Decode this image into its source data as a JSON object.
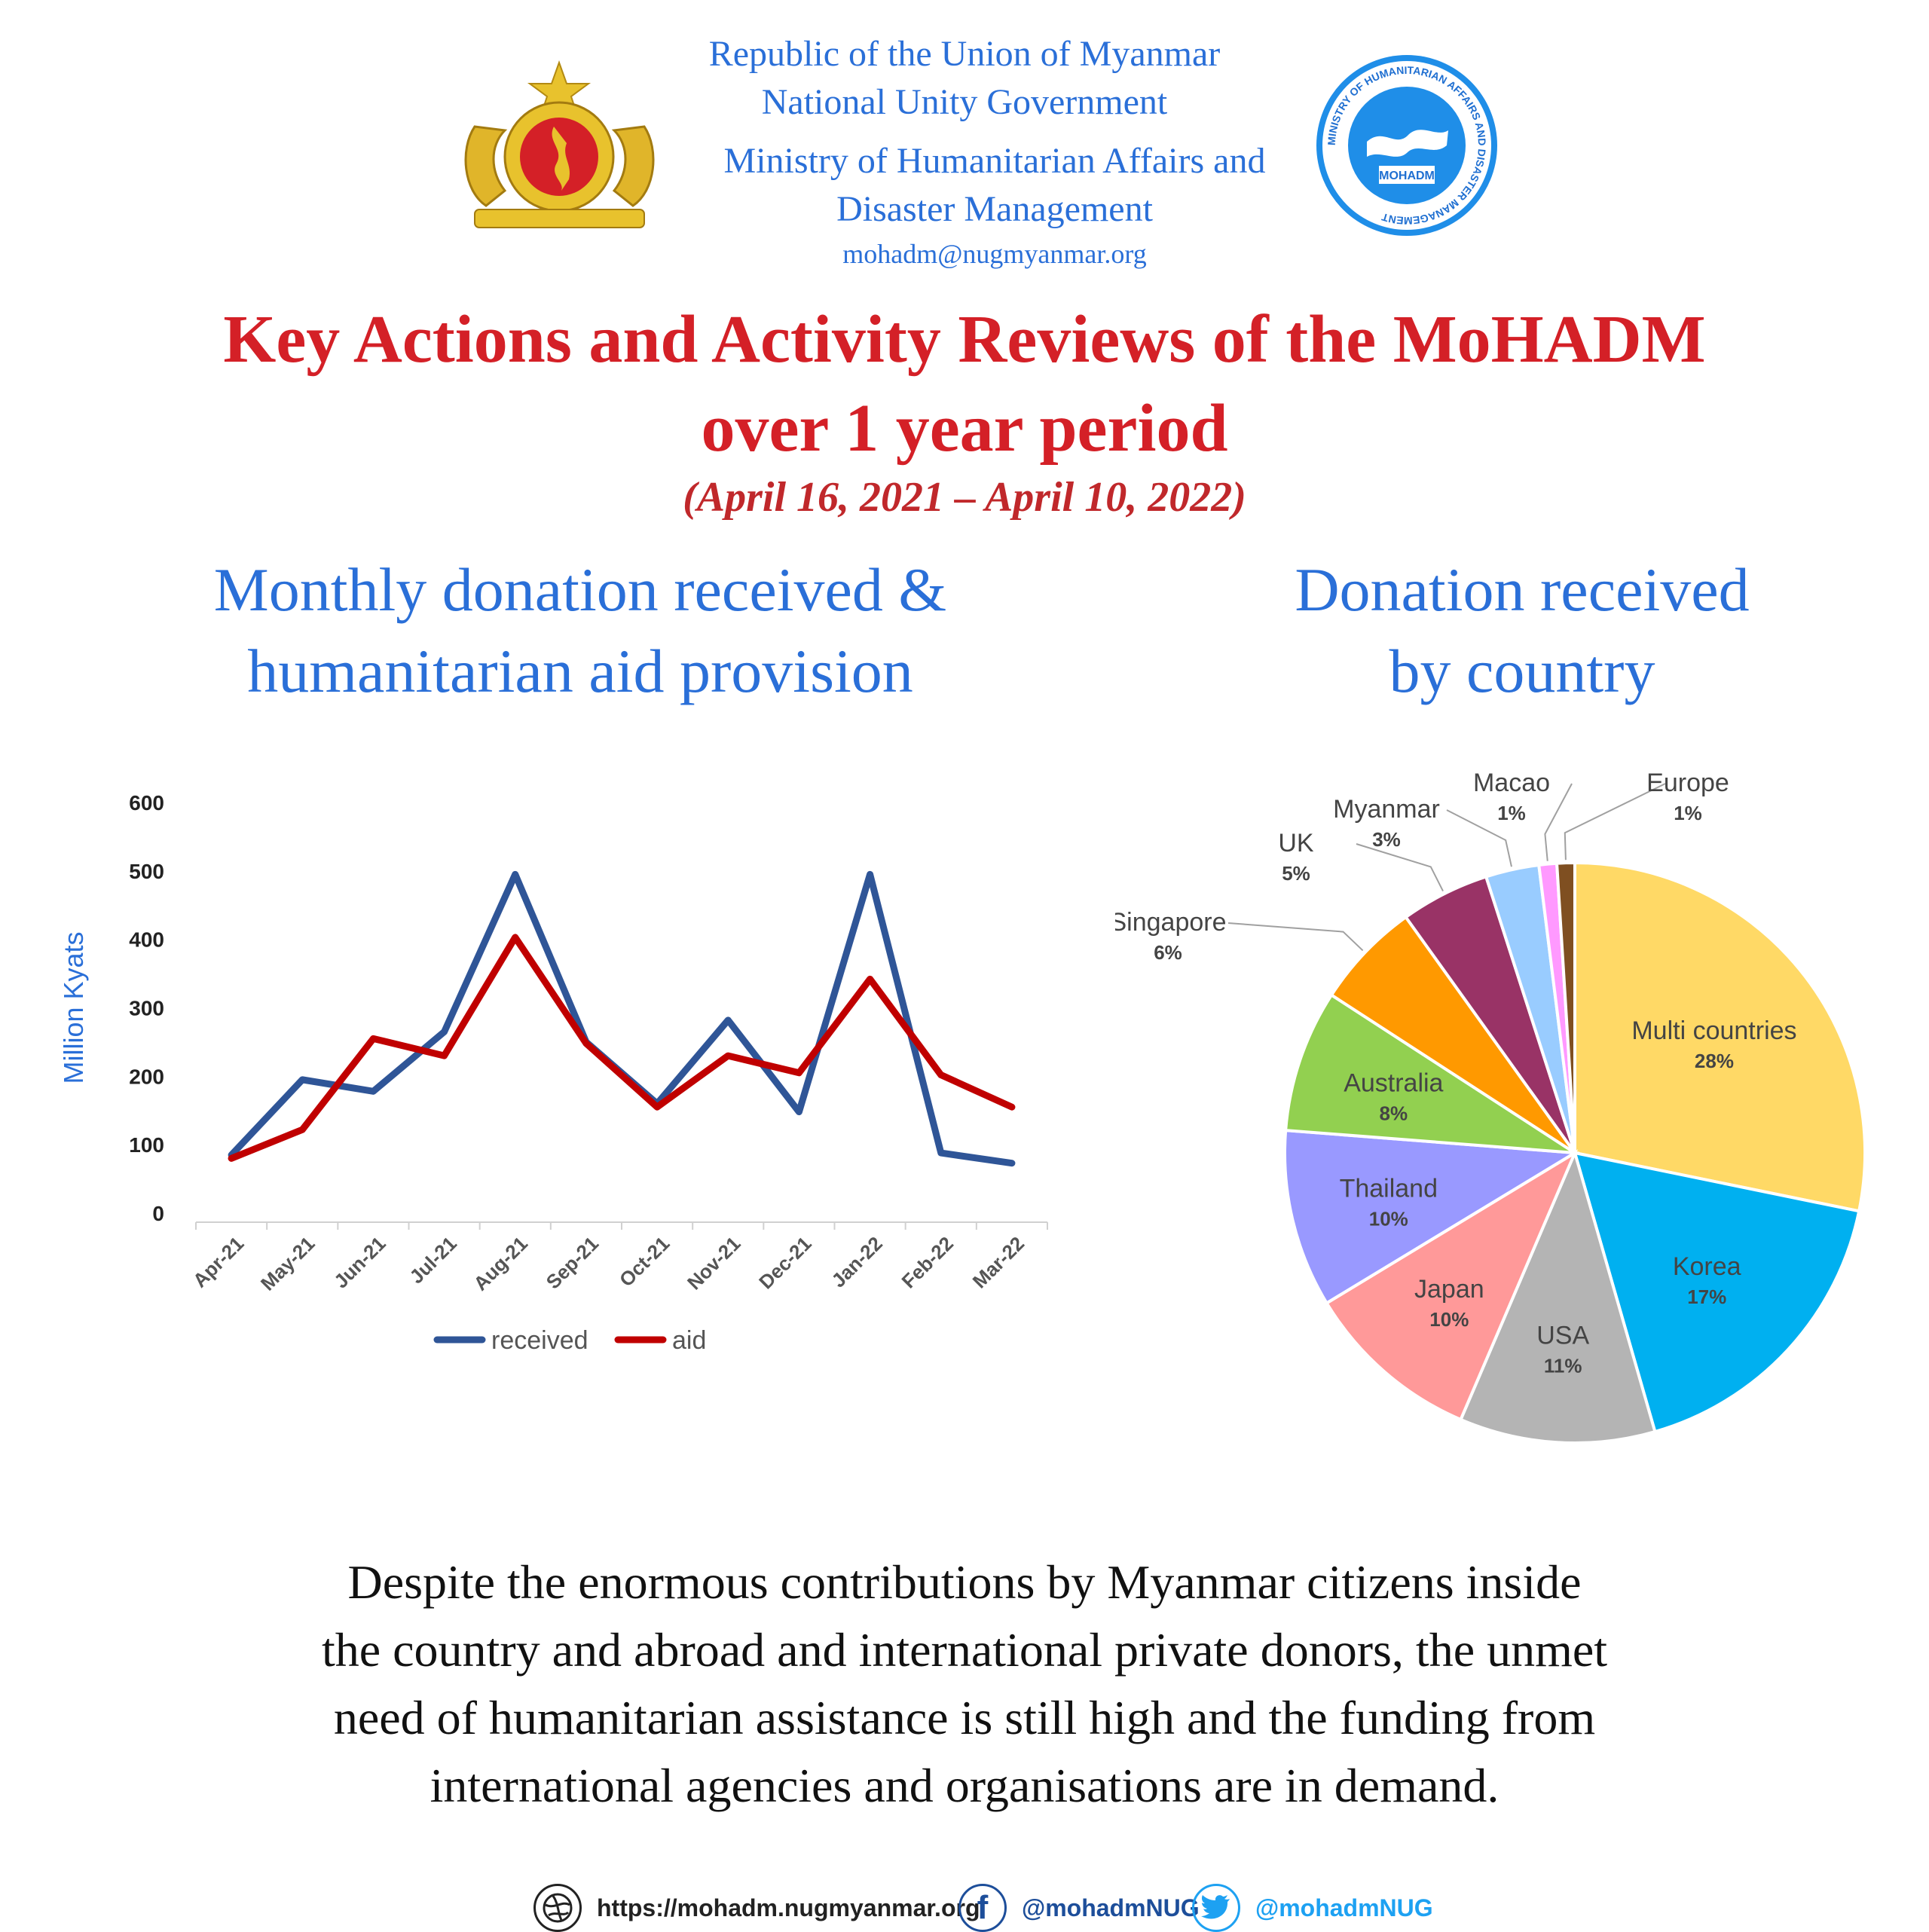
{
  "header": {
    "org_line_1": "Republic of the Union of Myanmar",
    "org_line_2": "National Unity Government",
    "org_line_3": "Ministry of Humanitarian Affairs and",
    "org_line_4": "Disaster Management",
    "email": "mohadm@nugmyanmar.org",
    "logo_text": "MOHADM",
    "seal_text": "MINISTRY OF HUMANITARIAN AFFAIRS AND DISASTER MANAGEMENT"
  },
  "title": {
    "line_1": "Key Actions and Activity Reviews of the MoHADM",
    "line_2": "over 1 year period",
    "period": "(April 16, 2021 – April 10, 2022)"
  },
  "left_heading": {
    "line_1": "Monthly donation received &",
    "line_2": "humanitarian aid provision"
  },
  "right_heading": {
    "line_1": "Donation received",
    "line_2": "by country"
  },
  "colors": {
    "received": "#2f5597",
    "aid": "#c00000",
    "heading": "#2a6fd8",
    "title": "#d42027"
  },
  "chart_data": [
    {
      "type": "line",
      "ylabel": "Million Kyats",
      "ylim": [
        0,
        600
      ],
      "yticks": [
        "600",
        "500",
        "400",
        "300",
        "200",
        "100",
        "0"
      ],
      "categories": [
        "Apr-21",
        "May-21",
        "Jun-21",
        "Jul-21",
        "Aug-21",
        "Sep-21",
        "Oct-21",
        "Nov-21",
        "Dec-21",
        "Jan-22",
        "Feb-22",
        "Mar-22"
      ],
      "series": [
        {
          "name": "received",
          "values": [
            85,
            195,
            178,
            265,
            495,
            250,
            160,
            282,
            148,
            495,
            88,
            73
          ]
        },
        {
          "name": "aid",
          "values": [
            80,
            122,
            255,
            230,
            403,
            248,
            155,
            230,
            205,
            342,
            202,
            155
          ]
        }
      ],
      "legend": "bottom",
      "grid": false
    },
    {
      "type": "pie",
      "slices": [
        {
          "label": "Multi countries",
          "pct": "28%",
          "value": 28.5,
          "color": "#ffd966"
        },
        {
          "label": "Korea",
          "pct": "17%",
          "value": 17.5,
          "color": "#00b0f0"
        },
        {
          "label": "USA",
          "pct": "11%",
          "value": 11,
          "color": "#b4b4b4"
        },
        {
          "label": "Japan",
          "pct": "10%",
          "value": 10,
          "color": "#ff9999"
        },
        {
          "label": "Thailand",
          "pct": "10%",
          "value": 10,
          "color": "#9999ff"
        },
        {
          "label": "Australia",
          "pct": "8%",
          "value": 8,
          "color": "#92d050"
        },
        {
          "label": "Singapore",
          "pct": "6%",
          "value": 6,
          "color": "#ff9900"
        },
        {
          "label": "UK",
          "pct": "5%",
          "value": 5,
          "color": "#993366"
        },
        {
          "label": "Myanmar",
          "pct": "3%",
          "value": 3,
          "color": "#99ccff"
        },
        {
          "label": "Macao",
          "pct": "1%",
          "value": 1,
          "color": "#ff99ff"
        },
        {
          "label": "Europe",
          "pct": "1%",
          "value": 1,
          "color": "#7f4f21"
        }
      ]
    }
  ],
  "body_text": {
    "line_1": "Despite the enormous contributions by Myanmar citizens inside",
    "line_2": "the country and abroad and international private donors, the unmet",
    "line_3": "need of humanitarian assistance is still high and the funding from",
    "line_4": "international agencies and organisations are in demand."
  },
  "footer": {
    "website": "https://mohadm.nugmyanmar.org",
    "facebook": "@mohadmNUG",
    "twitter": "@mohadmNUG"
  }
}
